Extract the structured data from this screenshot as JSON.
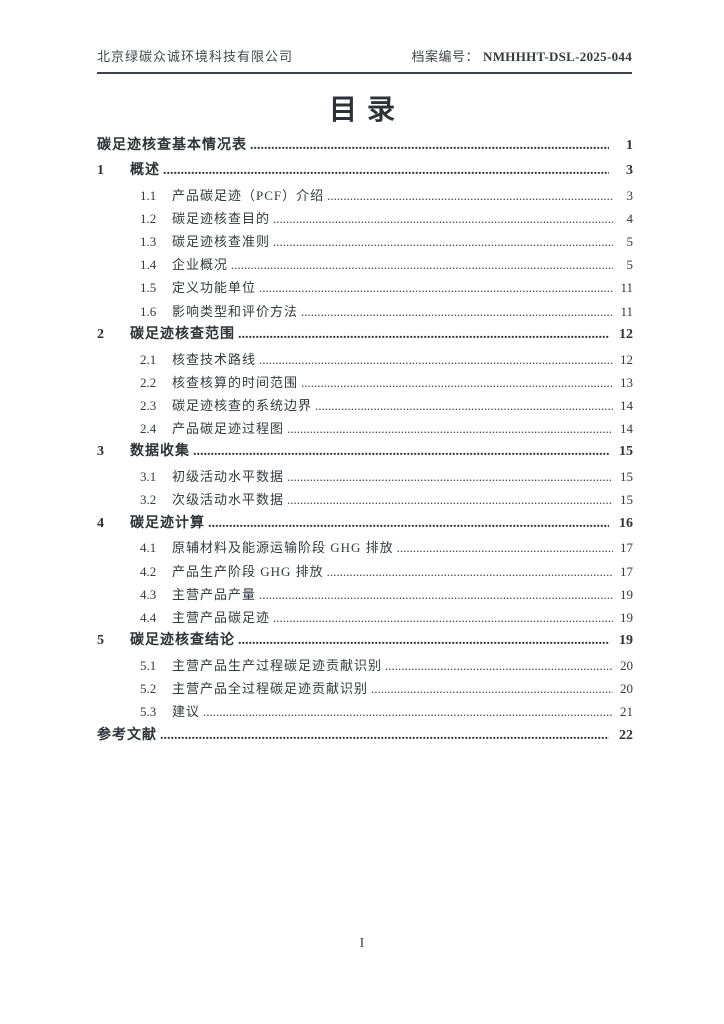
{
  "header": {
    "company": "北京绿碳众诚环境科技有限公司",
    "file_no_label": "档案编号：",
    "file_no": "NMHHHT-DSL-2025-044"
  },
  "title": "目录",
  "toc": {
    "entries": [
      {
        "level": "top",
        "num": "",
        "title": "碳足迹核查基本情况表",
        "page": "1"
      },
      {
        "level": "h1",
        "num": "1",
        "title": "概述",
        "page": "3"
      },
      {
        "level": "h2",
        "num": "1.1",
        "title": "产品碳足迹（PCF）介绍",
        "page": "3"
      },
      {
        "level": "h2",
        "num": "1.2",
        "title": "碳足迹核查目的",
        "page": "4"
      },
      {
        "level": "h2",
        "num": "1.3",
        "title": "碳足迹核查准则",
        "page": "5"
      },
      {
        "level": "h2",
        "num": "1.4",
        "title": "企业概况",
        "page": "5"
      },
      {
        "level": "h2",
        "num": "1.5",
        "title": "定义功能单位",
        "page": "11"
      },
      {
        "level": "h2",
        "num": "1.6",
        "title": "影响类型和评价方法",
        "page": "11"
      },
      {
        "level": "h1",
        "num": "2",
        "title": "碳足迹核查范围",
        "page": "12"
      },
      {
        "level": "h2",
        "num": "2.1",
        "title": "核查技术路线",
        "page": "12"
      },
      {
        "level": "h2",
        "num": "2.2",
        "title": "核查核算的时间范围",
        "page": "13"
      },
      {
        "level": "h2",
        "num": "2.3",
        "title": "碳足迹核查的系统边界",
        "page": "14"
      },
      {
        "level": "h2",
        "num": "2.4",
        "title": "产品碳足迹过程图",
        "page": "14"
      },
      {
        "level": "h1",
        "num": "3",
        "title": "数据收集",
        "page": "15"
      },
      {
        "level": "h2",
        "num": "3.1",
        "title": "初级活动水平数据",
        "page": "15"
      },
      {
        "level": "h2",
        "num": "3.2",
        "title": "次级活动水平数据",
        "page": "15"
      },
      {
        "level": "h1",
        "num": "4",
        "title": "碳足迹计算",
        "page": "16"
      },
      {
        "level": "h2",
        "num": "4.1",
        "title": "原辅材料及能源运输阶段 GHG 排放",
        "page": "17"
      },
      {
        "level": "h2",
        "num": "4.2",
        "title": "产品生产阶段 GHG 排放",
        "page": "17"
      },
      {
        "level": "h2",
        "num": "4.3",
        "title": "主营产品产量",
        "page": "19"
      },
      {
        "level": "h2",
        "num": "4.4",
        "title": "主营产品碳足迹",
        "page": "19"
      },
      {
        "level": "h1",
        "num": "5",
        "title": "碳足迹核查结论",
        "page": "19"
      },
      {
        "level": "h2",
        "num": "5.1",
        "title": "主营产品生产过程碳足迹贡献识别",
        "page": "20"
      },
      {
        "level": "h2",
        "num": "5.2",
        "title": "主营产品全过程碳足迹贡献识别",
        "page": "20"
      },
      {
        "level": "h2",
        "num": "5.3",
        "title": "建议",
        "page": "21"
      },
      {
        "level": "top",
        "num": "",
        "title": "参考文献",
        "page": "22"
      }
    ]
  },
  "footer": {
    "page_number": "I"
  }
}
